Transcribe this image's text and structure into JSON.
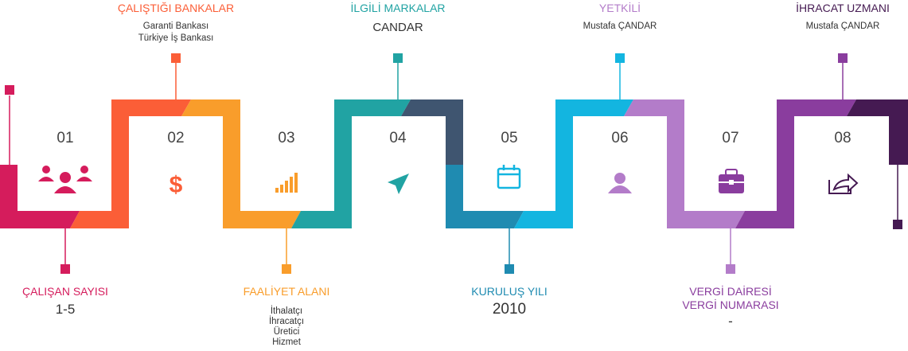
{
  "steps": [
    {
      "num": "01",
      "title": "ÇALIŞAN SAYISI",
      "value": "1-5",
      "icon": "people-icon",
      "color": "#d51c5c"
    },
    {
      "num": "02",
      "title": "ÇALIŞTIĞI BANKALAR",
      "lines": [
        "Garanti Bankası",
        "Türkiye İş Bankası"
      ],
      "icon": "dollar-icon",
      "color": "#fb5e37"
    },
    {
      "num": "03",
      "title": "FAALİYET ALANI",
      "lines": [
        "İthalatçı",
        "İhracatçı",
        "Üretici",
        "Hizmet"
      ],
      "icon": "bar-chart-icon",
      "color": "#f99d2b"
    },
    {
      "num": "04",
      "title": "İLGİLİ MARKALAR",
      "value": "CANDAR",
      "icon": "send-icon",
      "color": "#21a3a3"
    },
    {
      "num": "05",
      "title": "KURULUŞ YILI",
      "value": "2010",
      "icon": "calendar-icon",
      "color": "#1b87ae"
    },
    {
      "num": "06",
      "title": "YETKİLİ",
      "lines": [
        "Mustafa ÇANDAR"
      ],
      "icon": "user-icon",
      "color": "#b26ec3"
    },
    {
      "num": "07",
      "title_lines": [
        "VERGİ DAİRESİ",
        "VERGİ NUMARASI"
      ],
      "value": "-",
      "icon": "briefcase-icon",
      "color": "#8c3aa0"
    },
    {
      "num": "08",
      "title": "İHRACAT UZMANI",
      "lines": [
        "Mustafa ÇANDAR"
      ],
      "icon": "share-icon",
      "color": "#4a1b55"
    }
  ],
  "colors": {
    "c1": "#d51c5c",
    "c2": "#fb5e37",
    "c3": "#f99d2b",
    "c4": "#21a3a3",
    "c4b": "#3c5570",
    "c5": "#1f8bb1",
    "c6": "#13b5e0",
    "c7": "#b37cc9",
    "c8": "#8a3d9e",
    "c8b": "#451a52"
  }
}
